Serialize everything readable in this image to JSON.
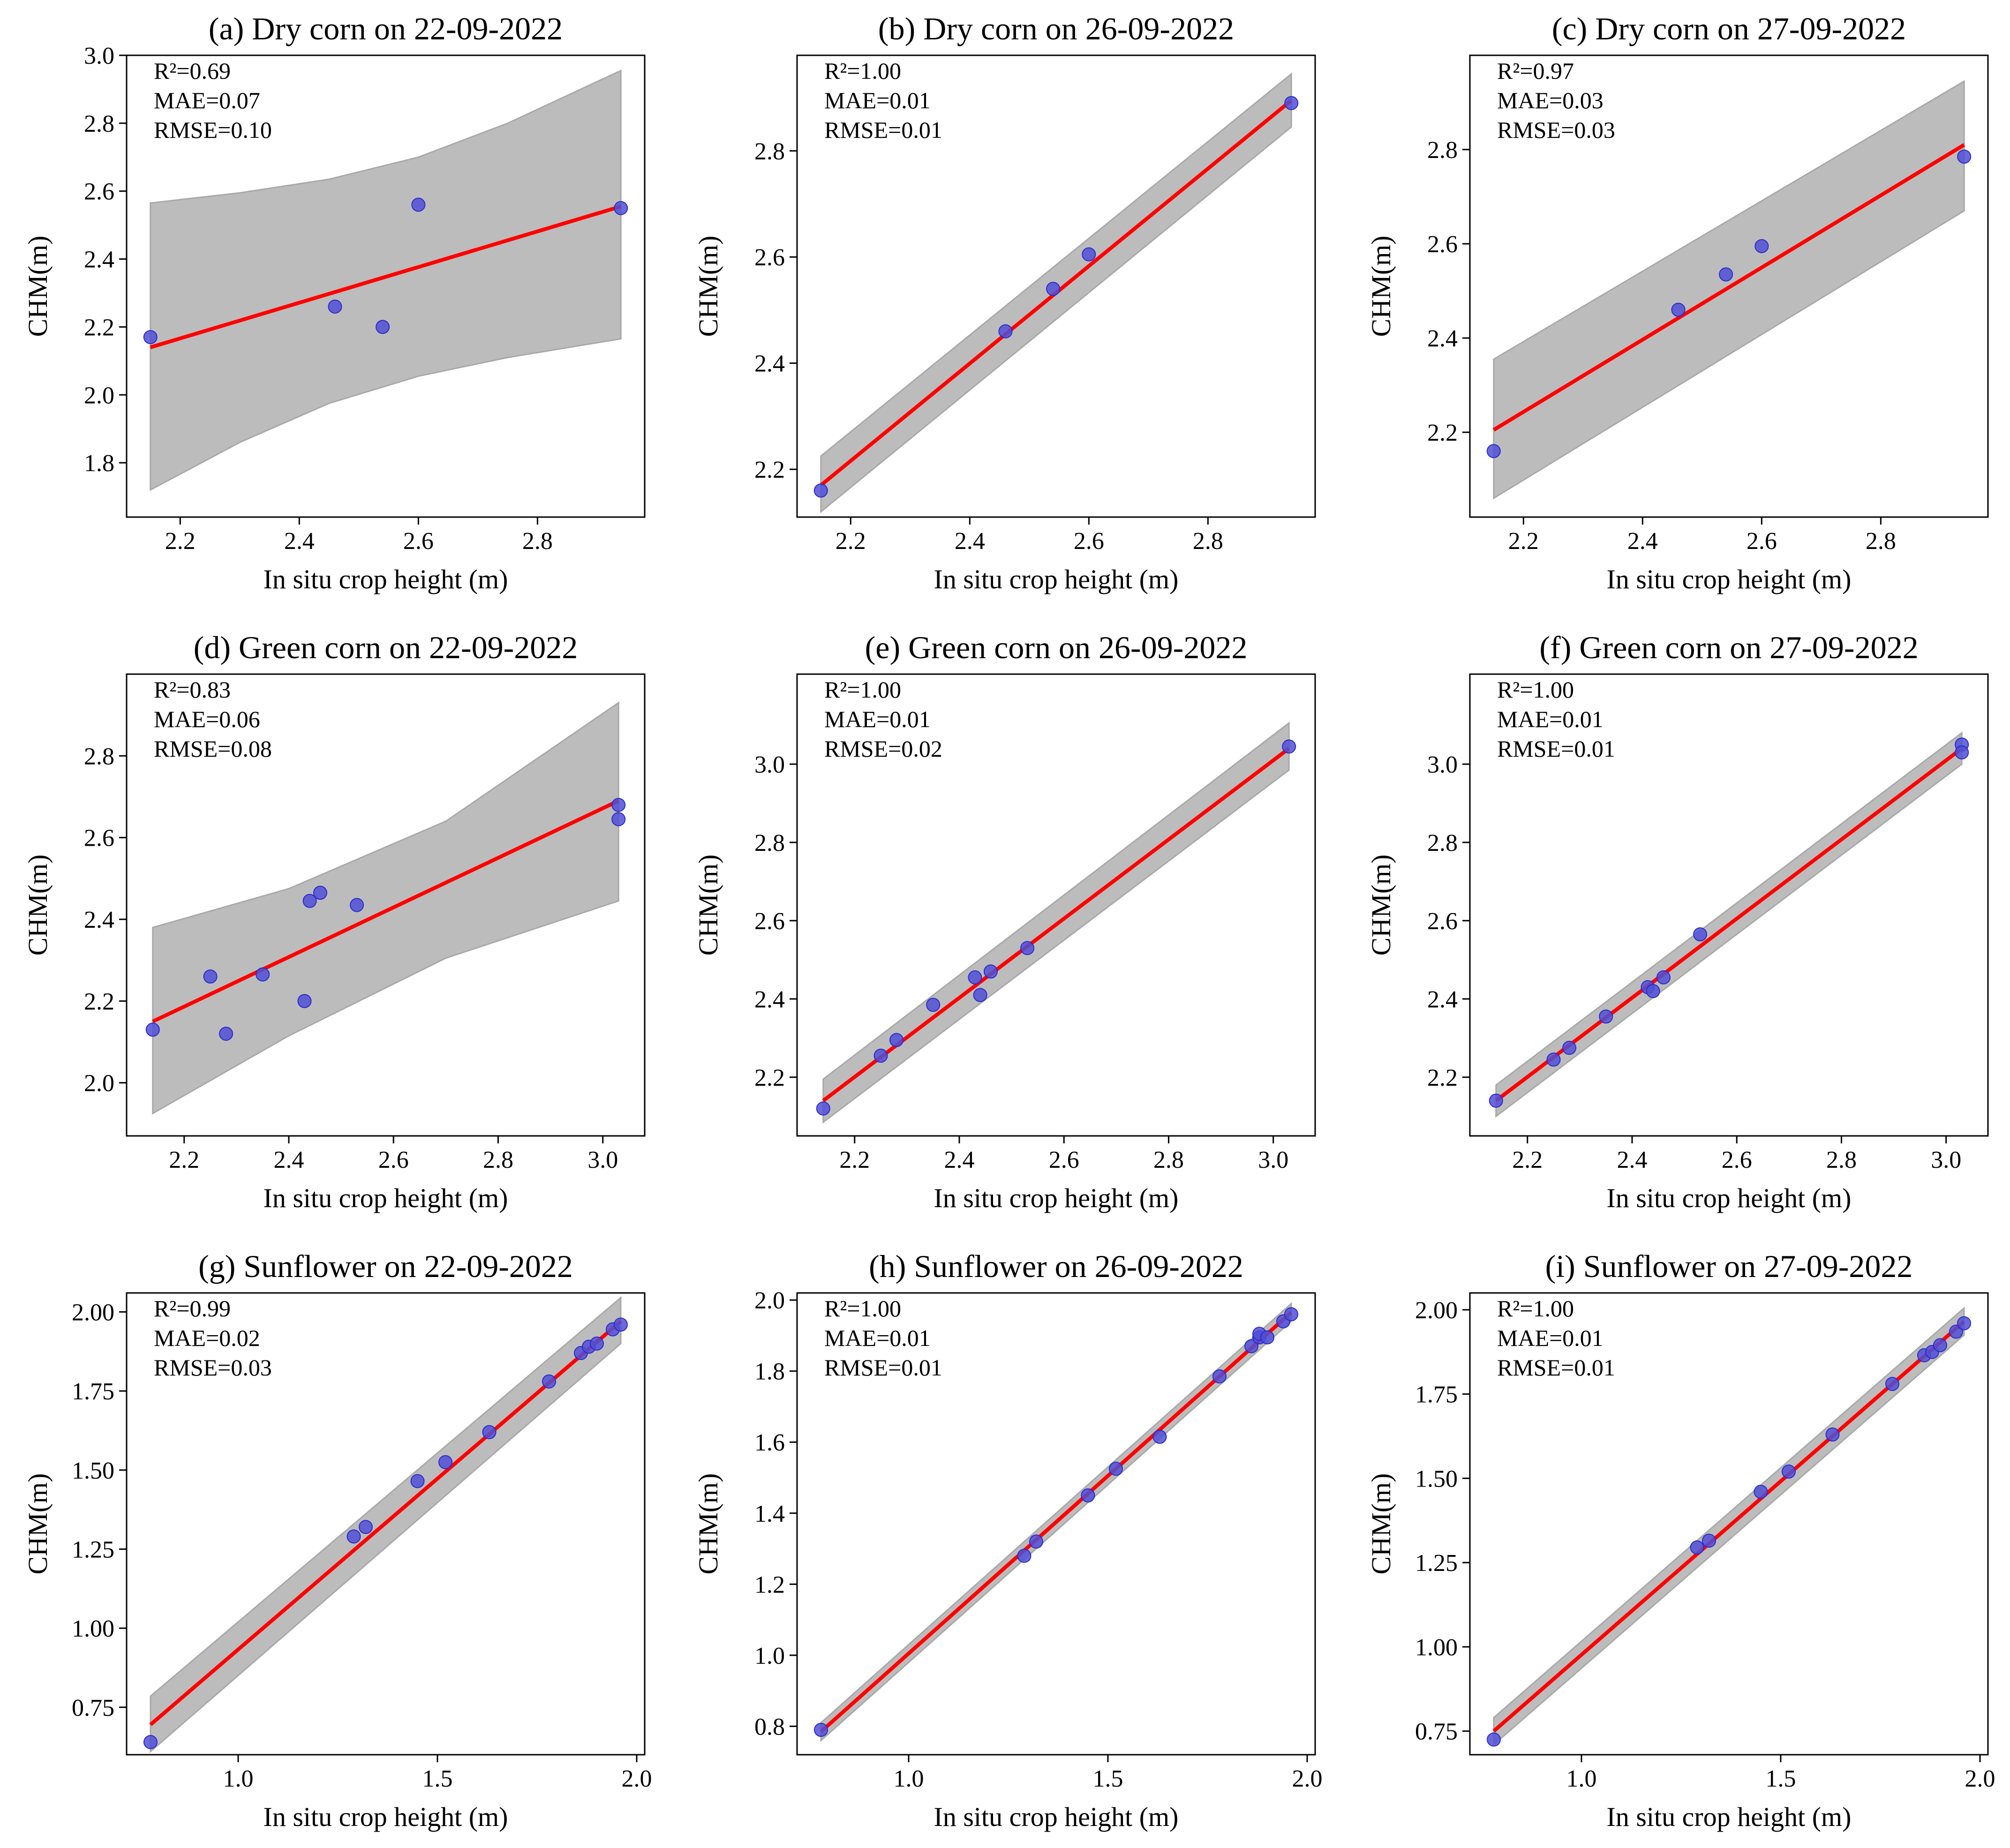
{
  "colors": {
    "band": "#bcbcbc",
    "band_edge": "#a8a8a8",
    "fit_line": "#ff0000",
    "point_fill": "#5050d6",
    "point_edge": "#2a2acc",
    "axes": "#000000"
  },
  "chart_data": [
    {
      "type": "scatter",
      "title": "(a) Dry corn on 22-09-2022",
      "xlabel": "In situ crop height (m)",
      "ylabel": "CHM(m)",
      "stats": [
        "R²=0.69",
        "MAE=0.07",
        "RMSE=0.10"
      ],
      "xlim": [
        2.11,
        2.98
      ],
      "ylim": [
        1.64,
        3.0
      ],
      "xticks": [
        "2.2",
        "2.4",
        "2.6",
        "2.8"
      ],
      "yticks": [
        "1.8",
        "2.0",
        "2.2",
        "2.4",
        "2.6",
        "2.8",
        "3.0"
      ],
      "points": [
        [
          2.15,
          2.17
        ],
        [
          2.46,
          2.26
        ],
        [
          2.54,
          2.2
        ],
        [
          2.6,
          2.56
        ],
        [
          2.94,
          2.55
        ]
      ],
      "fit": [
        [
          2.15,
          2.14
        ],
        [
          2.94,
          2.555
        ]
      ],
      "band_upper": [
        [
          2.15,
          2.565
        ],
        [
          2.3,
          2.595
        ],
        [
          2.45,
          2.635
        ],
        [
          2.6,
          2.7
        ],
        [
          2.75,
          2.8
        ],
        [
          2.94,
          2.955
        ]
      ],
      "band_lower": [
        [
          2.15,
          1.72
        ],
        [
          2.3,
          1.86
        ],
        [
          2.45,
          1.975
        ],
        [
          2.6,
          2.055
        ],
        [
          2.75,
          2.11
        ],
        [
          2.94,
          2.165
        ]
      ]
    },
    {
      "type": "scatter",
      "title": "(b) Dry corn on 26-09-2022",
      "xlabel": "In situ crop height (m)",
      "ylabel": "CHM(m)",
      "stats": [
        "R²=1.00",
        "MAE=0.01",
        "RMSE=0.01"
      ],
      "xlim": [
        2.11,
        2.98
      ],
      "ylim": [
        2.11,
        2.98
      ],
      "xticks": [
        "2.2",
        "2.4",
        "2.6",
        "2.8"
      ],
      "yticks": [
        "2.2",
        "2.4",
        "2.6",
        "2.8"
      ],
      "points": [
        [
          2.15,
          2.16
        ],
        [
          2.46,
          2.46
        ],
        [
          2.54,
          2.54
        ],
        [
          2.6,
          2.605
        ],
        [
          2.94,
          2.89
        ]
      ],
      "fit": [
        [
          2.15,
          2.17
        ],
        [
          2.94,
          2.895
        ]
      ],
      "band_upper": [
        [
          2.15,
          2.225
        ],
        [
          2.94,
          2.945
        ]
      ],
      "band_lower": [
        [
          2.15,
          2.12
        ],
        [
          2.94,
          2.845
        ]
      ]
    },
    {
      "type": "scatter",
      "title": "(c) Dry corn on 27-09-2022",
      "xlabel": "In situ crop height (m)",
      "ylabel": "CHM(m)",
      "stats": [
        "R²=0.97",
        "MAE=0.03",
        "RMSE=0.03"
      ],
      "xlim": [
        2.11,
        2.98
      ],
      "ylim": [
        2.02,
        3.0
      ],
      "xticks": [
        "2.2",
        "2.4",
        "2.6",
        "2.8"
      ],
      "yticks": [
        "2.2",
        "2.4",
        "2.6",
        "2.8"
      ],
      "points": [
        [
          2.15,
          2.16
        ],
        [
          2.46,
          2.46
        ],
        [
          2.54,
          2.535
        ],
        [
          2.6,
          2.595
        ],
        [
          2.94,
          2.785
        ]
      ],
      "fit": [
        [
          2.15,
          2.205
        ],
        [
          2.94,
          2.81
        ]
      ],
      "band_upper": [
        [
          2.15,
          2.355
        ],
        [
          2.94,
          2.945
        ]
      ],
      "band_lower": [
        [
          2.15,
          2.06
        ],
        [
          2.94,
          2.67
        ]
      ]
    },
    {
      "type": "scatter",
      "title": "(d) Green corn on 22-09-2022",
      "xlabel": "In situ crop height (m)",
      "ylabel": "CHM(m)",
      "stats": [
        "R²=0.83",
        "MAE=0.06",
        "RMSE=0.08"
      ],
      "xlim": [
        2.09,
        3.08
      ],
      "ylim": [
        1.87,
        3.0
      ],
      "xticks": [
        "2.2",
        "2.4",
        "2.6",
        "2.8",
        "3.0"
      ],
      "yticks": [
        "2.0",
        "2.2",
        "2.4",
        "2.6",
        "2.8"
      ],
      "points": [
        [
          2.14,
          2.13
        ],
        [
          2.25,
          2.26
        ],
        [
          2.28,
          2.12
        ],
        [
          2.35,
          2.265
        ],
        [
          2.43,
          2.2
        ],
        [
          2.44,
          2.445
        ],
        [
          2.46,
          2.465
        ],
        [
          2.53,
          2.435
        ],
        [
          3.03,
          2.68
        ],
        [
          3.03,
          2.645
        ]
      ],
      "fit": [
        [
          2.14,
          2.15
        ],
        [
          3.03,
          2.69
        ]
      ],
      "band_upper": [
        [
          2.14,
          2.38
        ],
        [
          2.4,
          2.475
        ],
        [
          2.7,
          2.64
        ],
        [
          3.03,
          2.93
        ]
      ],
      "band_lower": [
        [
          2.14,
          1.925
        ],
        [
          2.4,
          2.115
        ],
        [
          2.7,
          2.305
        ],
        [
          3.03,
          2.445
        ]
      ]
    },
    {
      "type": "scatter",
      "title": "(e) Green corn on 26-09-2022",
      "xlabel": "In situ crop height (m)",
      "ylabel": "CHM(m)",
      "stats": [
        "R²=1.00",
        "MAE=0.01",
        "RMSE=0.02"
      ],
      "xlim": [
        2.09,
        3.08
      ],
      "ylim": [
        2.05,
        3.23
      ],
      "xticks": [
        "2.2",
        "2.4",
        "2.6",
        "2.8",
        "3.0"
      ],
      "yticks": [
        "2.2",
        "2.4",
        "2.6",
        "2.8",
        "3.0"
      ],
      "points": [
        [
          2.14,
          2.12
        ],
        [
          2.25,
          2.255
        ],
        [
          2.28,
          2.295
        ],
        [
          2.35,
          2.385
        ],
        [
          2.43,
          2.455
        ],
        [
          2.44,
          2.41
        ],
        [
          2.46,
          2.47
        ],
        [
          2.53,
          2.53
        ],
        [
          3.03,
          3.045
        ]
      ],
      "fit": [
        [
          2.14,
          2.14
        ],
        [
          3.03,
          3.04
        ]
      ],
      "band_upper": [
        [
          2.14,
          2.195
        ],
        [
          3.03,
          3.105
        ]
      ],
      "band_lower": [
        [
          2.14,
          2.085
        ],
        [
          3.03,
          2.985
        ]
      ]
    },
    {
      "type": "scatter",
      "title": "(f) Green corn on 27-09-2022",
      "xlabel": "In situ crop height (m)",
      "ylabel": "CHM(m)",
      "stats": [
        "R²=1.00",
        "MAE=0.01",
        "RMSE=0.01"
      ],
      "xlim": [
        2.09,
        3.08
      ],
      "ylim": [
        2.05,
        3.23
      ],
      "xticks": [
        "2.2",
        "2.4",
        "2.6",
        "2.8",
        "3.0"
      ],
      "yticks": [
        "2.2",
        "2.4",
        "2.6",
        "2.8",
        "3.0"
      ],
      "points": [
        [
          2.14,
          2.14
        ],
        [
          2.25,
          2.245
        ],
        [
          2.28,
          2.275
        ],
        [
          2.35,
          2.355
        ],
        [
          2.43,
          2.43
        ],
        [
          2.44,
          2.42
        ],
        [
          2.46,
          2.455
        ],
        [
          2.53,
          2.565
        ],
        [
          3.03,
          3.05
        ],
        [
          3.03,
          3.03
        ]
      ],
      "fit": [
        [
          2.14,
          2.14
        ],
        [
          3.03,
          3.04
        ]
      ],
      "band_upper": [
        [
          2.14,
          2.18
        ],
        [
          3.03,
          3.08
        ]
      ],
      "band_lower": [
        [
          2.14,
          2.1
        ],
        [
          3.03,
          3.0
        ]
      ]
    },
    {
      "type": "scatter",
      "title": "(g) Sunflower on 22-09-2022",
      "xlabel": "In situ crop height (m)",
      "ylabel": "CHM(m)",
      "stats": [
        "R²=0.99",
        "MAE=0.02",
        "RMSE=0.03"
      ],
      "xlim": [
        0.72,
        2.02
      ],
      "ylim": [
        0.6,
        2.06
      ],
      "xticks": [
        "1.0",
        "1.5",
        "2.0"
      ],
      "yticks": [
        "0.75",
        "1.00",
        "1.25",
        "1.50",
        "1.75",
        "2.00"
      ],
      "points": [
        [
          0.78,
          0.64
        ],
        [
          1.29,
          1.29
        ],
        [
          1.32,
          1.32
        ],
        [
          1.45,
          1.465
        ],
        [
          1.52,
          1.525
        ],
        [
          1.63,
          1.62
        ],
        [
          1.78,
          1.78
        ],
        [
          1.86,
          1.87
        ],
        [
          1.88,
          1.89
        ],
        [
          1.9,
          1.9
        ],
        [
          1.94,
          1.945
        ],
        [
          1.96,
          1.96
        ]
      ],
      "fit": [
        [
          0.78,
          0.695
        ],
        [
          1.96,
          1.97
        ]
      ],
      "band_upper": [
        [
          0.78,
          0.785
        ],
        [
          1.96,
          2.045
        ]
      ],
      "band_lower": [
        [
          0.78,
          0.61
        ],
        [
          1.96,
          1.9
        ]
      ]
    },
    {
      "type": "scatter",
      "title": "(h) Sunflower on 26-09-2022",
      "xlabel": "In situ crop height (m)",
      "ylabel": "CHM(m)",
      "stats": [
        "R²=1.00",
        "MAE=0.01",
        "RMSE=0.01"
      ],
      "xlim": [
        0.72,
        2.02
      ],
      "ylim": [
        0.72,
        2.02
      ],
      "xticks": [
        "1.0",
        "1.5",
        "2.0"
      ],
      "yticks": [
        "0.8",
        "1.0",
        "1.2",
        "1.4",
        "1.6",
        "1.8",
        "2.0"
      ],
      "points": [
        [
          0.78,
          0.79
        ],
        [
          1.29,
          1.28
        ],
        [
          1.32,
          1.32
        ],
        [
          1.45,
          1.45
        ],
        [
          1.52,
          1.525
        ],
        [
          1.63,
          1.615
        ],
        [
          1.78,
          1.785
        ],
        [
          1.86,
          1.87
        ],
        [
          1.88,
          1.895
        ],
        [
          1.88,
          1.905
        ],
        [
          1.9,
          1.895
        ],
        [
          1.94,
          1.94
        ],
        [
          1.96,
          1.96
        ]
      ],
      "fit": [
        [
          0.78,
          0.785
        ],
        [
          1.96,
          1.965
        ]
      ],
      "band_upper": [
        [
          0.78,
          0.81
        ],
        [
          1.96,
          1.99
        ]
      ],
      "band_lower": [
        [
          0.78,
          0.76
        ],
        [
          1.96,
          1.94
        ]
      ]
    },
    {
      "type": "scatter",
      "title": "(i) Sunflower on 27-09-2022",
      "xlabel": "In situ crop height (m)",
      "ylabel": "CHM(m)",
      "stats": [
        "R²=1.00",
        "MAE=0.01",
        "RMSE=0.01"
      ],
      "xlim": [
        0.72,
        2.02
      ],
      "ylim": [
        0.68,
        2.05
      ],
      "xticks": [
        "1.0",
        "1.5",
        "2.0"
      ],
      "yticks": [
        "0.75",
        "1.00",
        "1.25",
        "1.50",
        "1.75",
        "2.00"
      ],
      "points": [
        [
          0.78,
          0.725
        ],
        [
          1.29,
          1.295
        ],
        [
          1.32,
          1.315
        ],
        [
          1.45,
          1.46
        ],
        [
          1.52,
          1.52
        ],
        [
          1.63,
          1.63
        ],
        [
          1.78,
          1.78
        ],
        [
          1.86,
          1.865
        ],
        [
          1.88,
          1.875
        ],
        [
          1.9,
          1.895
        ],
        [
          1.94,
          1.935
        ],
        [
          1.96,
          1.96
        ]
      ],
      "fit": [
        [
          0.78,
          0.75
        ],
        [
          1.96,
          1.965
        ]
      ],
      "band_upper": [
        [
          0.78,
          0.79
        ],
        [
          1.96,
          2.005
        ]
      ],
      "band_lower": [
        [
          0.78,
          0.71
        ],
        [
          1.96,
          1.925
        ]
      ]
    }
  ]
}
